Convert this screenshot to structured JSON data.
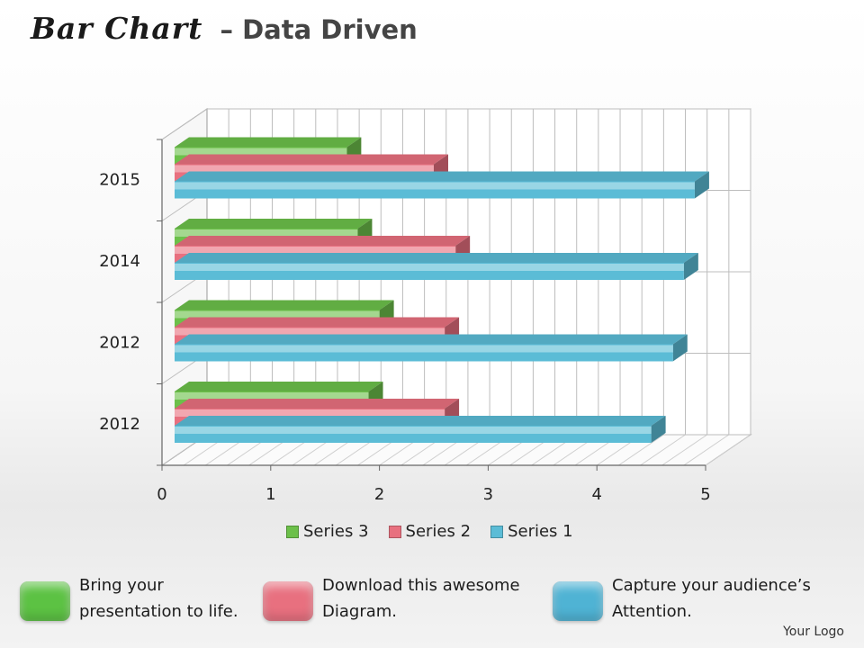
{
  "header": {
    "title_script": "Bar Chart",
    "title_rest": "– Data Driven"
  },
  "chart_data": {
    "type": "bar",
    "orientation": "horizontal",
    "categories": [
      "2012",
      "2012",
      "2014",
      "2015"
    ],
    "series": [
      {
        "name": "Series 1",
        "color": "#5bbcd6",
        "values": [
          4.5,
          4.7,
          4.8,
          4.9
        ]
      },
      {
        "name": "Series 2",
        "color": "#e8707f",
        "values": [
          2.6,
          2.6,
          2.7,
          2.5
        ]
      },
      {
        "name": "Series 3",
        "color": "#6cc04a",
        "values": [
          1.9,
          2.0,
          1.8,
          1.7
        ]
      }
    ],
    "x_ticks": [
      "0",
      "1",
      "2",
      "3",
      "4",
      "5"
    ],
    "xlim": [
      0,
      5
    ],
    "grid": true,
    "legend_position": "bottom",
    "legend_order": [
      "Series 3",
      "Series 2",
      "Series 1"
    ]
  },
  "callouts": [
    {
      "line1": "Bring your",
      "line2": "presentation to life.",
      "color": "#5cc243"
    },
    {
      "line1": "Download this awesome",
      "line2": "Diagram.",
      "color": "#e8707f"
    },
    {
      "line1": "Capture your audience’s",
      "line2": "Attention.",
      "color": "#4fb3d4"
    }
  ],
  "footer": {
    "logo_text": "Your Logo"
  }
}
